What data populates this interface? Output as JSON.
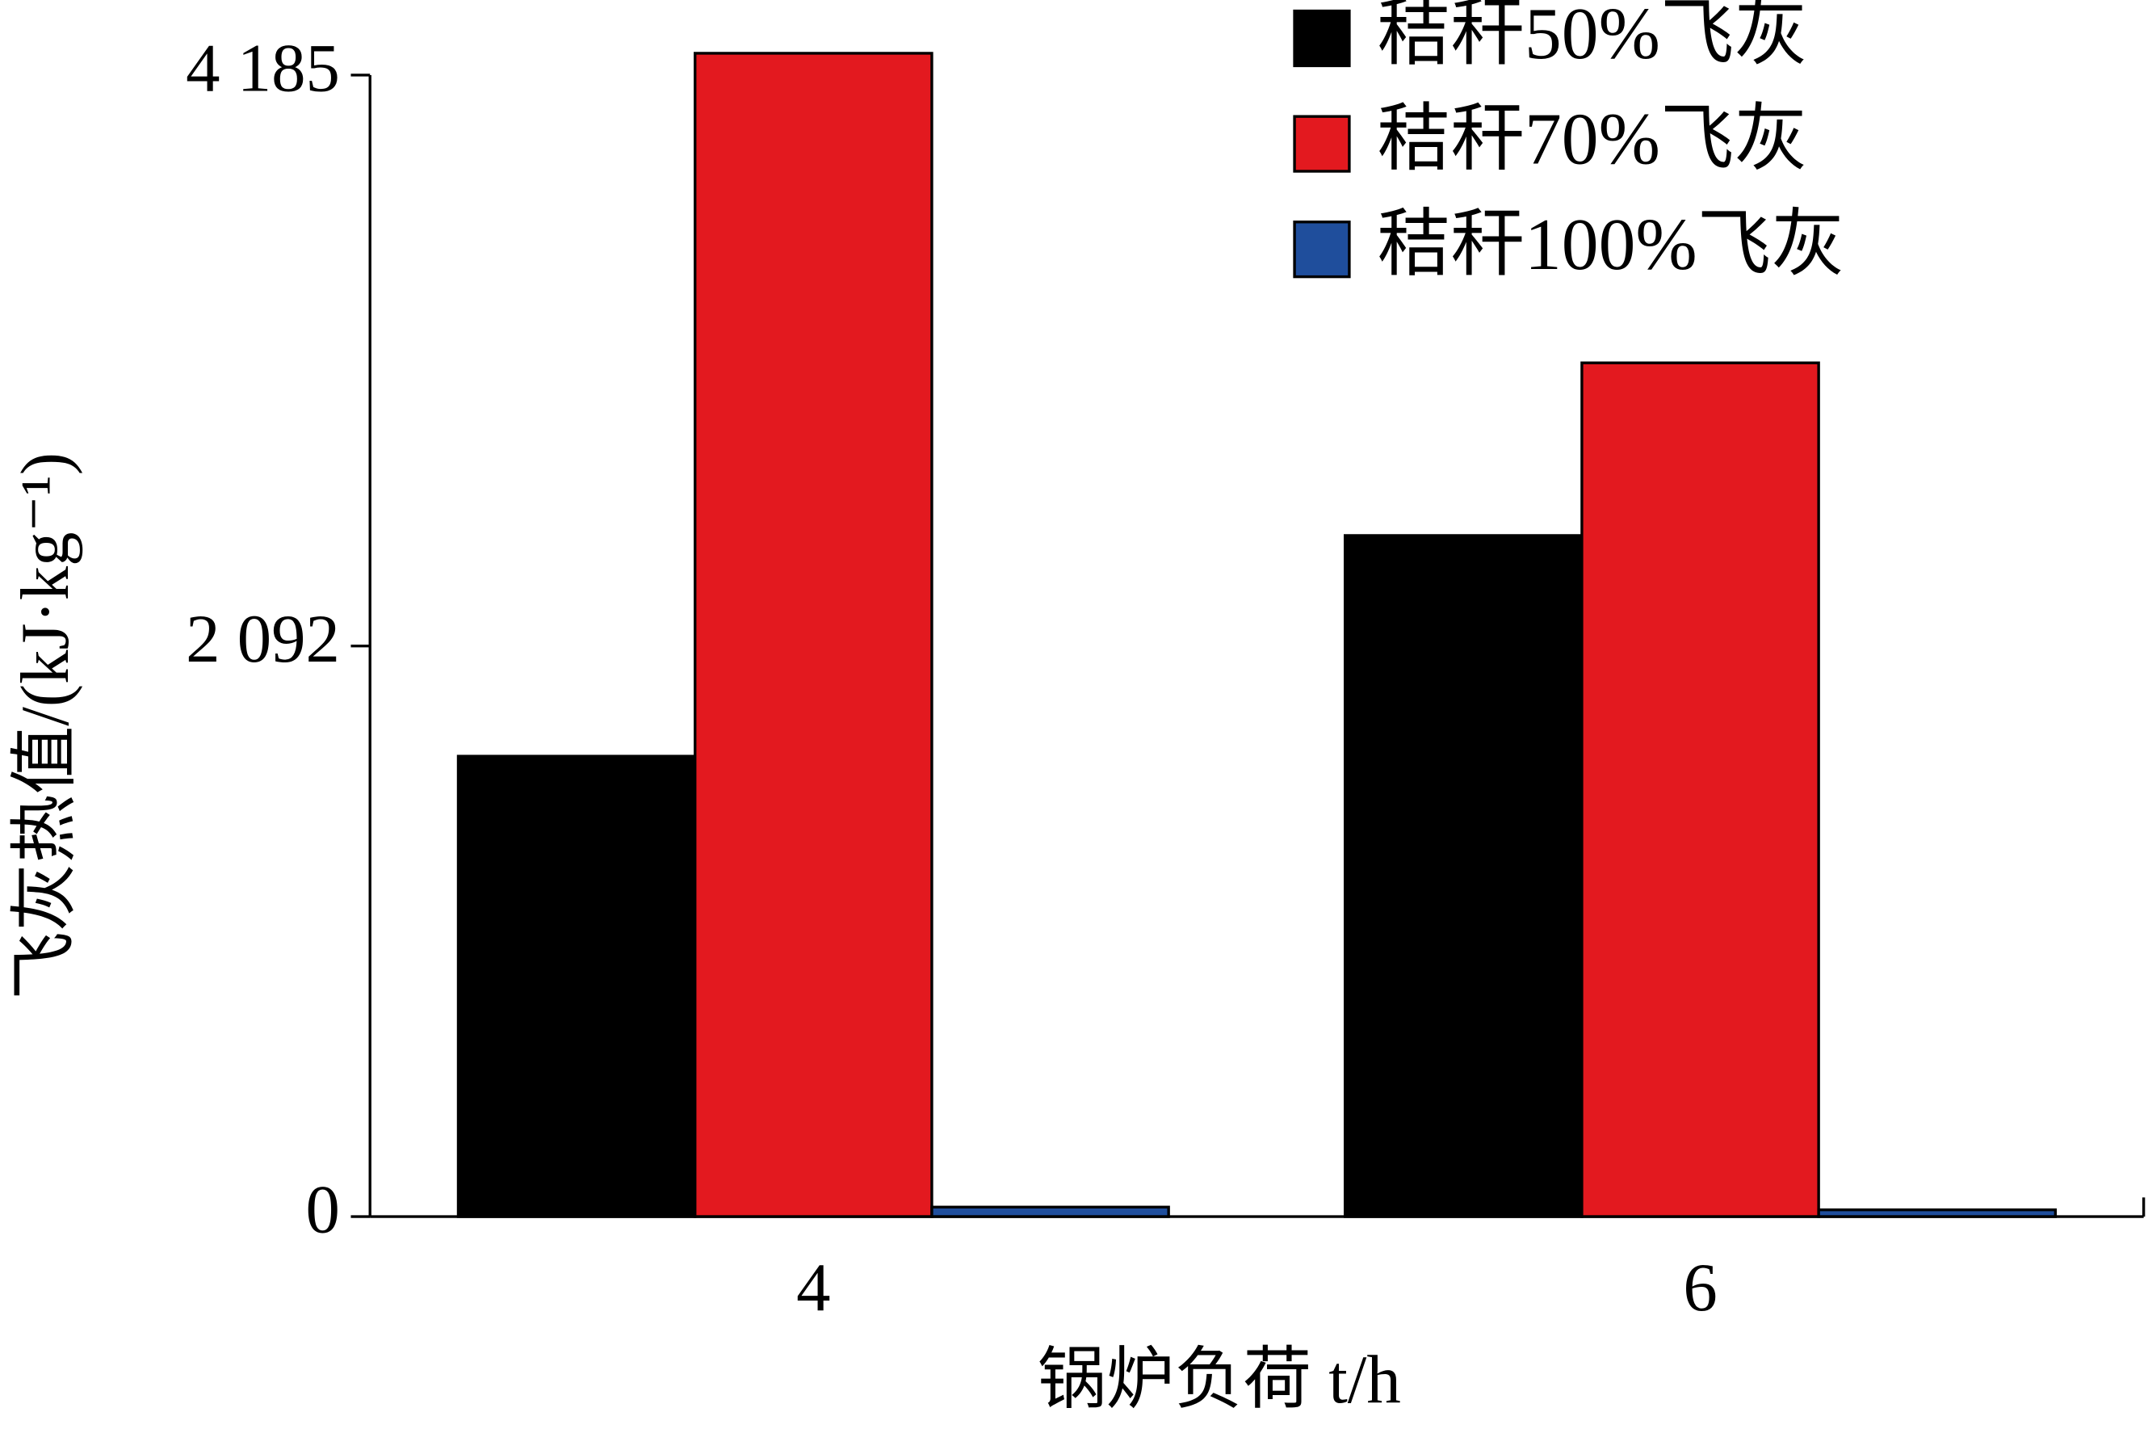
{
  "chart_data": {
    "type": "bar",
    "categories": [
      "4",
      "6"
    ],
    "x_label": "锅炉负荷 t/h",
    "y_label": "飞灰热值/(kJ·kg⁻¹)",
    "series": [
      {
        "name": "秸秆50%飞灰",
        "color": "#000000",
        "values": [
          1688,
          2497
        ]
      },
      {
        "name": "秸秆70%飞灰",
        "color": "#e3191f",
        "values": [
          4265,
          3130
        ]
      },
      {
        "name": "秸秆100%飞灰",
        "color": "#1f4e9c",
        "values": [
          35,
          25
        ]
      }
    ],
    "ylim": [
      0,
      4400
    ],
    "yticks": [
      0,
      {
        "value": 2092,
        "label": "2 092"
      },
      {
        "value": 4185,
        "label": "4 185"
      }
    ],
    "legend": "upper right",
    "grid": false
  }
}
